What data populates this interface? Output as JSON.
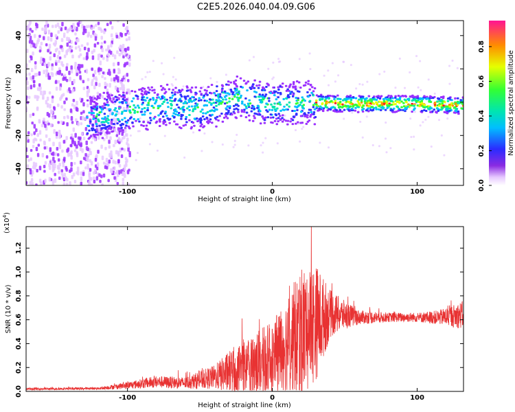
{
  "title": "C2E5.2026.040.04.09.G06",
  "chart_data": [
    {
      "type": "heatmap",
      "xlabel": "Height of straight line (km)",
      "ylabel": "Frequency (Hz)",
      "xlim": [
        -170,
        132
      ],
      "ylim": [
        -50,
        49
      ],
      "x_ticks": [
        -100,
        0,
        100
      ],
      "y_ticks": [
        40,
        20,
        0,
        -20,
        -40
      ],
      "colorbar": {
        "label": "Normalized spectral amplitude",
        "range": [
          0,
          0.95
        ],
        "ticks": [
          "0.0",
          "0.2",
          "0.4",
          "0.6",
          "0.8"
        ]
      },
      "ridge": {
        "description_points_x": [
          -125,
          -100,
          -75,
          -50,
          -25,
          0,
          25,
          50,
          75,
          100,
          130
        ],
        "center_freq_hz": [
          -10,
          -5,
          -2,
          -4,
          3,
          -1,
          0,
          -1,
          -1,
          -1,
          -2
        ]
      }
    },
    {
      "type": "line",
      "xlabel": "Height of straight line (km)",
      "ylabel": "SNR (10 * v/v)",
      "scale_note": "(x10",
      "scale_exp": "4",
      "xlim": [
        -170,
        132
      ],
      "ylim": [
        0,
        1.38
      ],
      "x_ticks": [
        -100,
        0,
        100
      ],
      "y_ticks": [
        "0.0",
        "0.2",
        "0.4",
        "0.6",
        "0.8",
        "1.0",
        "1.2"
      ],
      "envelope_x": [
        -170,
        -120,
        -100,
        -80,
        -60,
        -40,
        -20,
        0,
        10,
        20,
        30,
        40,
        50,
        60,
        80,
        100,
        115,
        132
      ],
      "envelope_mean": [
        0.02,
        0.025,
        0.05,
        0.08,
        0.07,
        0.12,
        0.2,
        0.28,
        0.4,
        0.5,
        0.58,
        0.65,
        0.64,
        0.62,
        0.62,
        0.62,
        0.62,
        0.64
      ],
      "envelope_spread": [
        0.01,
        0.01,
        0.03,
        0.05,
        0.05,
        0.1,
        0.25,
        0.3,
        0.4,
        0.55,
        0.5,
        0.2,
        0.12,
        0.06,
        0.04,
        0.04,
        0.06,
        0.12
      ],
      "line_color": "#e83232"
    }
  ]
}
